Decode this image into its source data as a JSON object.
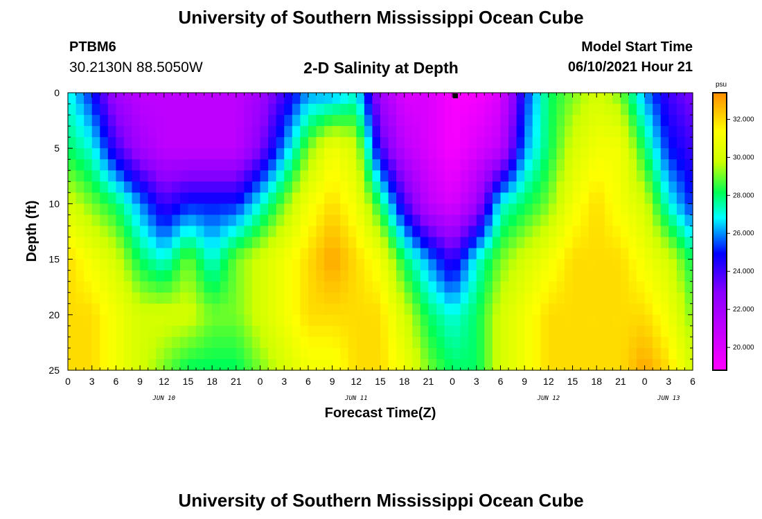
{
  "header": {
    "title": "University of Southern Mississippi Ocean Cube",
    "station_id": "PTBM6",
    "coordinates": "30.2130N  88.5050W",
    "plot_title": "2-D Salinity at Depth",
    "start_label": "Model Start Time",
    "start_value": "06/10/2021 Hour 21"
  },
  "footer": {
    "title": "University of Southern Mississippi Ocean Cube"
  },
  "chart_data": {
    "type": "heatmap",
    "title": "2-D Salinity at Depth",
    "xlabel": "Forecast Time(Z)",
    "ylabel": "Depth (ft)",
    "x_range_hours": [
      0,
      78
    ],
    "ylim": [
      0,
      25
    ],
    "y_ticks": [
      0,
      5,
      10,
      15,
      20,
      25
    ],
    "x_tick_labels": [
      "0",
      "3",
      "6",
      "9",
      "12",
      "15",
      "18",
      "21",
      "0",
      "3",
      "6",
      "9",
      "12",
      "15",
      "18",
      "21",
      "0",
      "3",
      "6",
      "9",
      "12",
      "15",
      "18",
      "21",
      "0",
      "3",
      "6"
    ],
    "day_labels": [
      {
        "label": "JUN 10",
        "hour": 12
      },
      {
        "label": "JUN 11",
        "hour": 36
      },
      {
        "label": "JUN 12",
        "hour": 60
      },
      {
        "label": "JUN 13",
        "hour": 75
      }
    ],
    "colorbar": {
      "unit": "psu",
      "range": [
        18.8,
        33.4
      ],
      "ticks": [
        "32.000",
        "30.000",
        "28.000",
        "26.000",
        "24.000",
        "22.000",
        "20.000"
      ],
      "tick_values": [
        32,
        30,
        28,
        26,
        24,
        22,
        20
      ]
    },
    "depth_rows_ft": [
      0,
      5,
      10,
      15,
      20,
      25
    ],
    "sample_hours": [
      0,
      3,
      6,
      9,
      12,
      15,
      18,
      21,
      24,
      27,
      30,
      33,
      36,
      39,
      42,
      45,
      48,
      51,
      54,
      57,
      60,
      63,
      66,
      69,
      72,
      75,
      78
    ],
    "salinity_psu": [
      [
        27,
        25,
        22,
        21,
        21,
        21,
        21,
        21,
        22,
        24,
        26,
        26,
        27,
        22,
        20,
        20,
        19,
        19,
        20,
        25,
        28,
        29,
        30,
        29,
        26,
        24,
        23
      ],
      [
        28,
        27,
        24,
        22,
        21,
        21,
        21,
        21,
        23,
        26,
        29,
        31,
        30,
        24,
        21,
        20,
        19,
        20,
        21,
        26,
        28,
        30,
        31,
        31,
        28,
        25,
        24
      ],
      [
        30,
        29,
        28,
        26,
        24,
        25,
        25,
        25,
        27,
        29,
        31,
        32,
        31,
        28,
        24,
        21,
        20,
        22,
        27,
        28,
        29,
        31,
        32,
        31,
        30,
        27,
        25
      ],
      [
        32,
        31,
        30,
        28,
        27,
        29,
        27,
        29,
        30,
        31,
        32,
        33,
        32,
        31,
        28,
        26,
        24,
        27,
        29,
        30,
        31,
        32,
        32,
        32,
        31,
        30,
        28
      ],
      [
        32,
        32,
        31,
        30,
        30,
        30,
        29,
        29,
        30,
        31,
        32,
        32,
        32,
        32,
        30,
        28,
        27,
        28,
        30,
        31,
        32,
        32,
        32,
        32,
        32,
        31,
        29
      ],
      [
        32,
        32,
        31,
        30,
        29,
        28,
        28,
        28,
        29,
        30,
        31,
        31,
        32,
        32,
        31,
        29,
        28,
        28,
        30,
        31,
        32,
        32,
        32,
        32,
        33,
        32,
        30
      ]
    ]
  }
}
